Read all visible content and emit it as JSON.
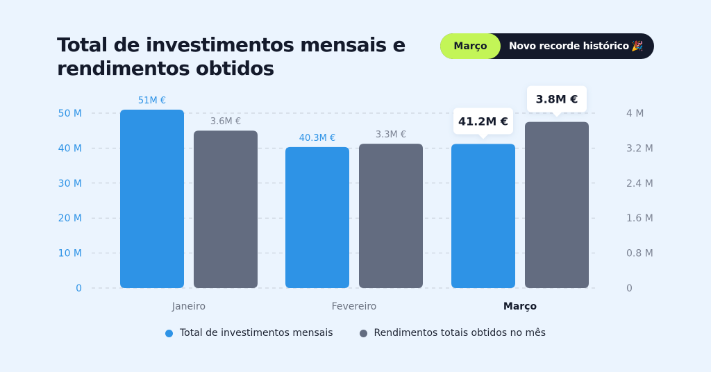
{
  "header": {
    "title": "Total de investimentos mensais e rendimentos obtidos"
  },
  "badge": {
    "month": "Março",
    "text": "Novo recorde histórico",
    "icon": "party-popper-icon",
    "icon_glyph": "🎉"
  },
  "colors": {
    "background": "#EBF4FE",
    "investments": "#2E93E6",
    "returns": "#636C80",
    "badge_accent": "#C3F557",
    "badge_dark": "#141A2B"
  },
  "chart_data": {
    "type": "bar",
    "title": "Total de investimentos mensais e rendimentos obtidos",
    "categories": [
      "Janeiro",
      "Fevereiro",
      "Março"
    ],
    "highlighted_category": "Março",
    "series": [
      {
        "name": "Total de investimentos mensais",
        "axis": "left",
        "values": [
          51,
          40.3,
          41.2
        ],
        "labels": [
          "51M €",
          "40.3M €",
          "41.2M €"
        ]
      },
      {
        "name": "Rendimentos totais obtidos no mês",
        "axis": "right",
        "values": [
          3.6,
          3.3,
          3.8
        ],
        "labels": [
          "3.6M €",
          "3.3M €",
          "3.8M €"
        ]
      }
    ],
    "left_axis": {
      "ylim": [
        0,
        50
      ],
      "ticks": [
        0,
        10,
        20,
        30,
        40,
        50
      ],
      "tick_labels": [
        "0",
        "10 M",
        "20 M",
        "30 M",
        "40 M",
        "50 M"
      ]
    },
    "right_axis": {
      "ylim": [
        0,
        4
      ],
      "ticks": [
        0,
        0.8,
        1.6,
        2.4,
        3.2,
        4
      ],
      "tick_labels": [
        "0",
        "0.8 M",
        "1.6 M",
        "2.4 M",
        "3.2 M",
        "4 M"
      ]
    },
    "grid": true,
    "legend_position": "bottom-center"
  }
}
